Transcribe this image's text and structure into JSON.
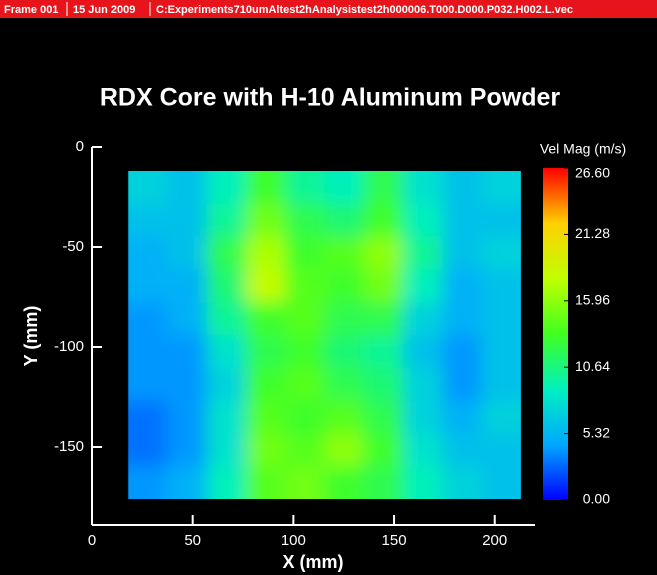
{
  "chart_data": {
    "type": "heatmap",
    "header_fields": [
      "Frame 001",
      "15 Jun 2009",
      "C:Experiments710umAltest2hAnalysistest2h000006.T000.D000.P032.H002.L.vec"
    ],
    "title": "RDX Core with H-10 Aluminum Powder",
    "xlabel": "X (mm)",
    "ylabel": "Y (mm)",
    "xlim": [
      0,
      220
    ],
    "xticks": [
      0,
      50,
      100,
      150,
      200
    ],
    "ylim": [
      -189,
      0
    ],
    "yticks": [
      0,
      -50,
      -100,
      -150
    ],
    "x_extent": [
      18,
      213
    ],
    "y_extent": [
      -176,
      -12
    ],
    "z": [
      [
        7,
        6,
        9,
        13,
        10,
        9,
        12,
        8,
        6,
        7
      ],
      [
        6,
        6,
        10,
        15,
        12,
        11,
        13,
        9,
        6,
        6
      ],
      [
        5,
        6,
        12,
        17,
        13,
        14,
        16,
        10,
        6,
        7
      ],
      [
        5,
        5,
        11,
        18,
        14,
        13,
        15,
        9,
        5,
        6
      ],
      [
        4,
        5,
        10,
        13,
        14,
        12,
        12,
        7,
        5,
        6
      ],
      [
        4,
        4,
        8,
        12,
        13,
        11,
        10,
        6,
        4,
        6
      ],
      [
        4,
        4,
        7,
        13,
        14,
        12,
        11,
        7,
        4,
        6
      ],
      [
        3,
        4,
        8,
        14,
        13,
        14,
        12,
        7,
        5,
        7
      ],
      [
        3,
        4,
        8,
        15,
        14,
        16,
        13,
        8,
        6,
        6
      ],
      [
        4,
        5,
        9,
        14,
        15,
        13,
        12,
        9,
        7,
        6
      ]
    ],
    "colorbar_label": "Vel Mag (m/s)",
    "clim": [
      0,
      26.6
    ],
    "cticks": [
      {
        "value": 0,
        "label": "0.00"
      },
      {
        "value": 5.32,
        "label": "5.32"
      },
      {
        "value": 10.64,
        "label": "10.64"
      },
      {
        "value": 15.96,
        "label": "15.96"
      },
      {
        "value": 21.28,
        "label": "21.28"
      },
      {
        "value": 26.6,
        "label": "26.60"
      }
    ],
    "colormap": [
      "#0000ff",
      "#00a8ff",
      "#00f0c0",
      "#40ff20",
      "#c0ff00",
      "#ffd000",
      "#ff0000"
    ]
  }
}
